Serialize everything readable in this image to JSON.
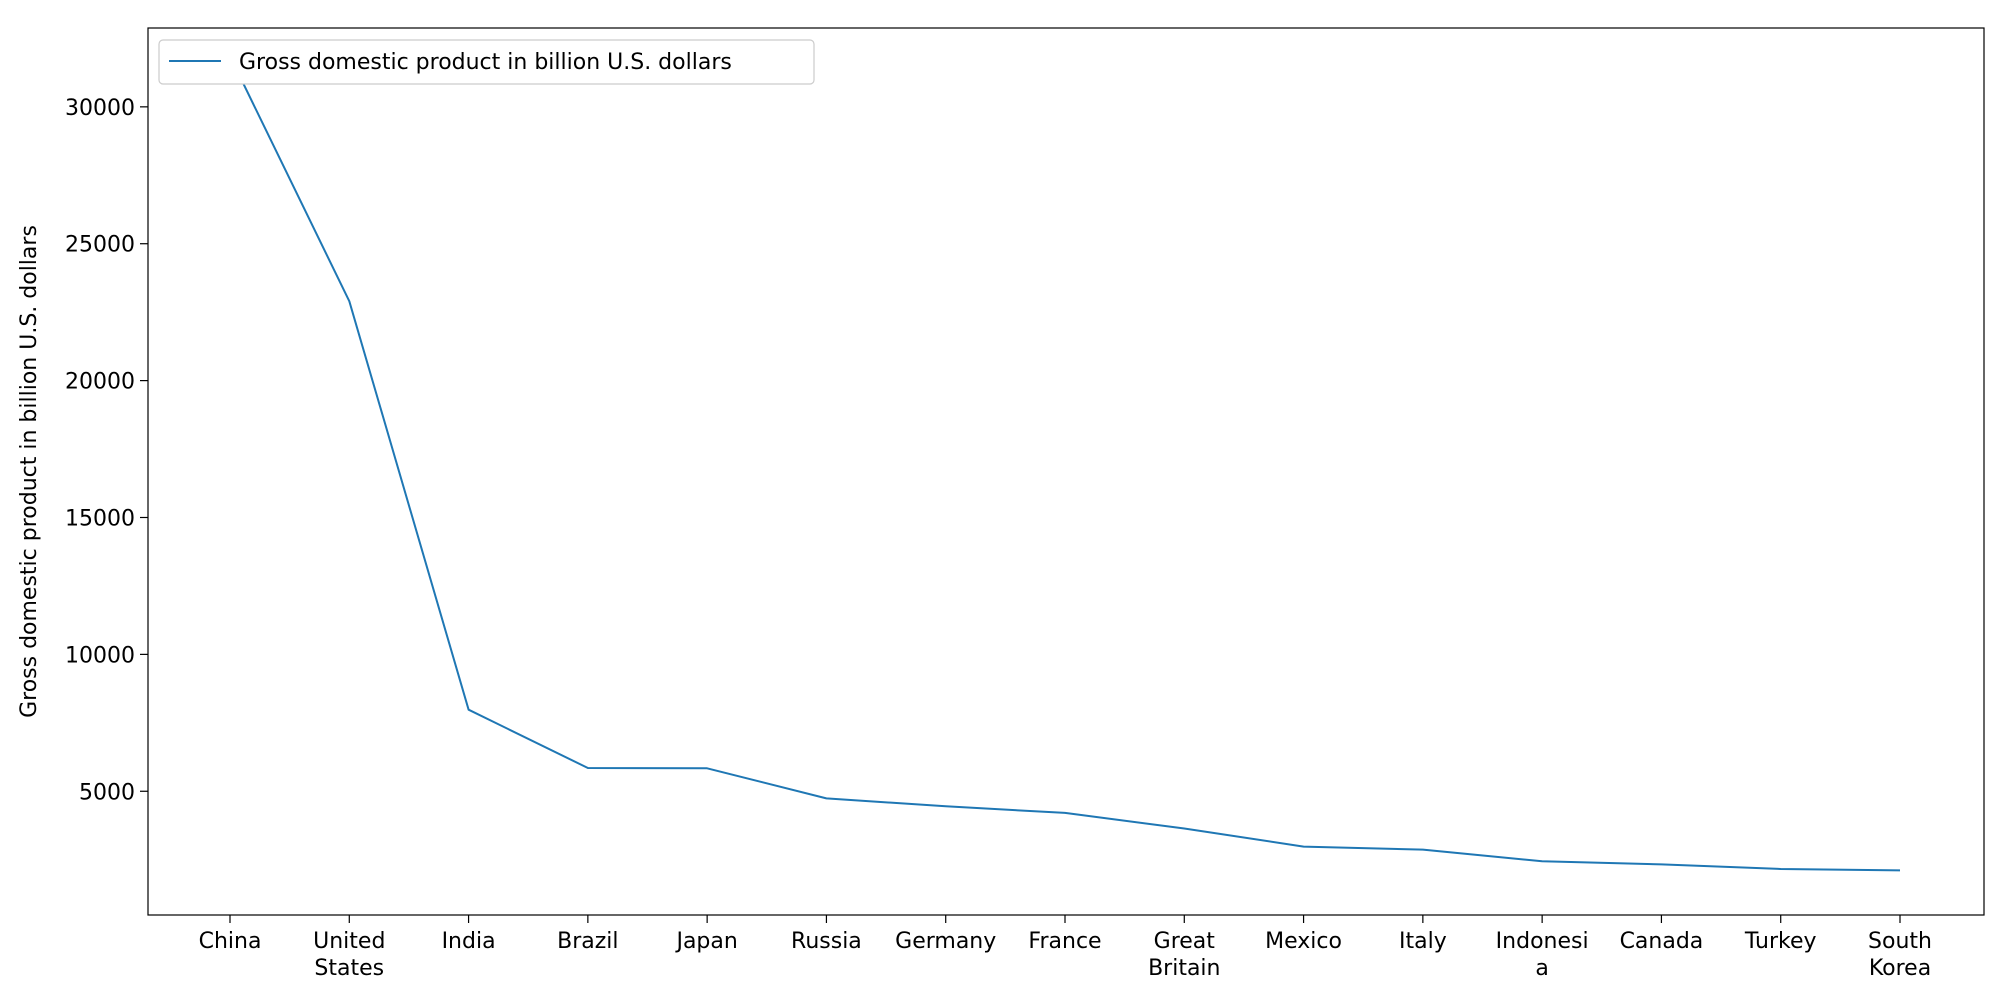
{
  "chart_data": {
    "type": "line",
    "categories": [
      "China",
      "United States",
      "India",
      "Brazil",
      "Japan",
      "Russia",
      "Germany",
      "France",
      "Great Britain",
      "Mexico",
      "Italy",
      "Indonesia",
      "Canada",
      "Turkey",
      "South Korea"
    ],
    "category_tick_lines": [
      [
        "China"
      ],
      [
        "United",
        "States"
      ],
      [
        "India"
      ],
      [
        "Brazil"
      ],
      [
        "Japan"
      ],
      [
        "Russia"
      ],
      [
        "Germany"
      ],
      [
        "France"
      ],
      [
        "Great",
        "Britain"
      ],
      [
        "Mexico"
      ],
      [
        "Italy"
      ],
      [
        "Indonesi",
        "a"
      ],
      [
        "Canada"
      ],
      [
        "Turkey"
      ],
      [
        "South",
        "Korea"
      ]
    ],
    "series": [
      {
        "name": "Gross domestic product in billion U.S. dollars",
        "values": [
          31850,
          22900,
          7980,
          5850,
          5840,
          4740,
          4450,
          4210,
          3640,
          2980,
          2870,
          2440,
          2330,
          2160,
          2110
        ],
        "color": "#1f77b4"
      }
    ],
    "title": "",
    "xlabel": "",
    "ylabel": "Gross domestic product in billion U.S. dollars",
    "ylim": [
      480,
      32880
    ],
    "yticks": [
      5000,
      10000,
      15000,
      20000,
      25000,
      30000
    ],
    "grid": false,
    "legend_position": "upper-left"
  }
}
